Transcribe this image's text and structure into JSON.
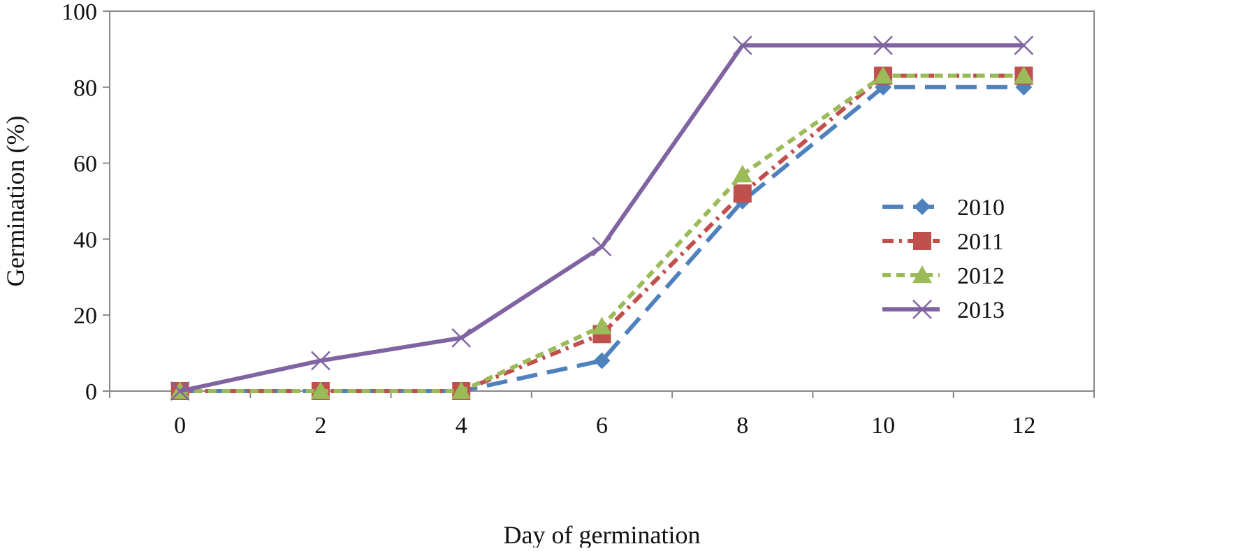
{
  "chart_data": {
    "type": "line",
    "title": "",
    "xlabel": "Day of germination",
    "ylabel": "Germination (%)",
    "x": [
      0,
      2,
      4,
      6,
      8,
      10,
      12
    ],
    "xlim": [
      -1,
      13
    ],
    "ylim": [
      0,
      100
    ],
    "xticks": [
      "0",
      "2",
      "4",
      "6",
      "8",
      "10",
      "12"
    ],
    "yticks": [
      "0",
      "20",
      "40",
      "60",
      "80",
      "100"
    ],
    "grid": false,
    "legend_position": "right",
    "series": [
      {
        "name": "2010",
        "values": [
          0,
          0,
          0,
          8,
          50,
          80,
          80
        ],
        "color": "#4F81BD",
        "marker": "diamond",
        "line": "long-dash"
      },
      {
        "name": "2011",
        "values": [
          0,
          0,
          0,
          15,
          52,
          83,
          83
        ],
        "color": "#C0504D",
        "marker": "square",
        "line": "dash-dot"
      },
      {
        "name": "2012",
        "values": [
          0,
          0,
          0,
          17,
          57,
          83,
          83
        ],
        "color": "#9BBB59",
        "marker": "triangle",
        "line": "dash"
      },
      {
        "name": "2013",
        "values": [
          0,
          8,
          14,
          38,
          91,
          91,
          91
        ],
        "color": "#8064A2",
        "marker": "x",
        "line": "solid"
      }
    ]
  }
}
